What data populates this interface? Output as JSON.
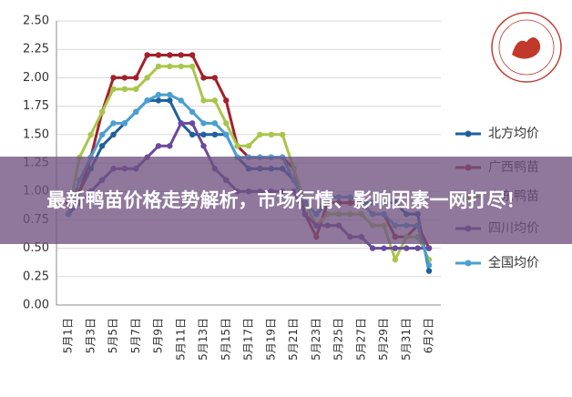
{
  "chart_data": {
    "type": "line",
    "categories": [
      "5月1日",
      null,
      "5月3日",
      null,
      "5月5日",
      null,
      "5月7日",
      null,
      "5月9日",
      null,
      "5月11日",
      null,
      "5月13日",
      null,
      "5月15日",
      null,
      "5月17日",
      null,
      "5月19日",
      null,
      "5月21日",
      null,
      "5月23日",
      null,
      "5月25日",
      null,
      "5月27日",
      null,
      "5月29日",
      null,
      "5月31日",
      null,
      "6月2日"
    ],
    "ylim": [
      0,
      2.5
    ],
    "yticks": [
      {
        "value": 0,
        "label": "0.00"
      },
      {
        "value": 0.25,
        "label": "0.25"
      },
      {
        "value": 0.5,
        "label": "0.50"
      },
      {
        "value": 0.75,
        "label": "0.75"
      },
      {
        "value": 1,
        "label": "1.00"
      },
      {
        "value": 1.25,
        "label": "1.25"
      },
      {
        "value": 1.5,
        "label": "1.50"
      },
      {
        "value": 1.75,
        "label": "1.75"
      },
      {
        "value": 2,
        "label": "2.00"
      },
      {
        "value": 2.25,
        "label": "2.25"
      },
      {
        "value": 2.5,
        "label": "2.50"
      }
    ],
    "grid": true,
    "series": [
      {
        "name": "北方均价",
        "color": "#1f5f9e",
        "values": [
          0.8,
          1.0,
          1.2,
          1.4,
          1.5,
          1.6,
          1.7,
          1.8,
          1.8,
          1.8,
          1.6,
          1.5,
          1.5,
          1.5,
          1.5,
          1.3,
          1.2,
          1.2,
          1.2,
          1.2,
          1.1,
          0.9,
          0.8,
          0.9,
          0.9,
          0.9,
          0.9,
          0.9,
          0.9,
          0.9,
          0.8,
          0.8,
          0.3
        ]
      },
      {
        "name": "广西鸭苗",
        "color": "#a3202a",
        "values": [
          0.9,
          1.0,
          1.3,
          1.7,
          2.0,
          2.0,
          2.0,
          2.2,
          2.2,
          2.2,
          2.2,
          2.2,
          2.0,
          2.0,
          1.8,
          1.4,
          1.3,
          1.3,
          1.3,
          1.3,
          1.2,
          0.8,
          0.6,
          0.9,
          0.9,
          0.9,
          0.9,
          0.8,
          0.8,
          0.6,
          0.6,
          0.7,
          0.5
        ]
      },
      {
        "name": "广东鸭苗",
        "color": "#a8c64a",
        "values": [
          0.8,
          1.3,
          1.5,
          1.7,
          1.9,
          1.9,
          1.9,
          2.0,
          2.1,
          2.1,
          2.1,
          2.1,
          1.8,
          1.8,
          1.6,
          1.4,
          1.4,
          1.5,
          1.5,
          1.5,
          1.2,
          0.9,
          0.7,
          0.8,
          0.8,
          0.8,
          0.8,
          0.7,
          0.7,
          0.4,
          0.6,
          0.6,
          0.4
        ]
      },
      {
        "name": "四川均价",
        "color": "#6a4a9c",
        "values": [
          0.8,
          0.9,
          1.0,
          1.1,
          1.2,
          1.2,
          1.2,
          1.3,
          1.4,
          1.4,
          1.6,
          1.6,
          1.4,
          1.2,
          1.1,
          1.0,
          1.0,
          1.0,
          1.0,
          1.0,
          1.0,
          0.8,
          0.7,
          0.7,
          0.7,
          0.6,
          0.6,
          0.5,
          0.5,
          0.5,
          0.5,
          0.5,
          0.5
        ]
      },
      {
        "name": "全国均价",
        "color": "#4a9fd0",
        "values": [
          0.8,
          1.1,
          1.3,
          1.5,
          1.6,
          1.6,
          1.7,
          1.8,
          1.85,
          1.85,
          1.8,
          1.7,
          1.6,
          1.6,
          1.5,
          1.3,
          1.3,
          1.3,
          1.3,
          1.3,
          1.1,
          0.9,
          0.8,
          0.95,
          0.95,
          0.95,
          0.9,
          0.8,
          0.8,
          0.7,
          0.7,
          0.7,
          0.35
        ]
      }
    ]
  },
  "banner": {
    "text": "最新鸭苗价格走势解析，市场行情、影响因素一网打尽！"
  }
}
